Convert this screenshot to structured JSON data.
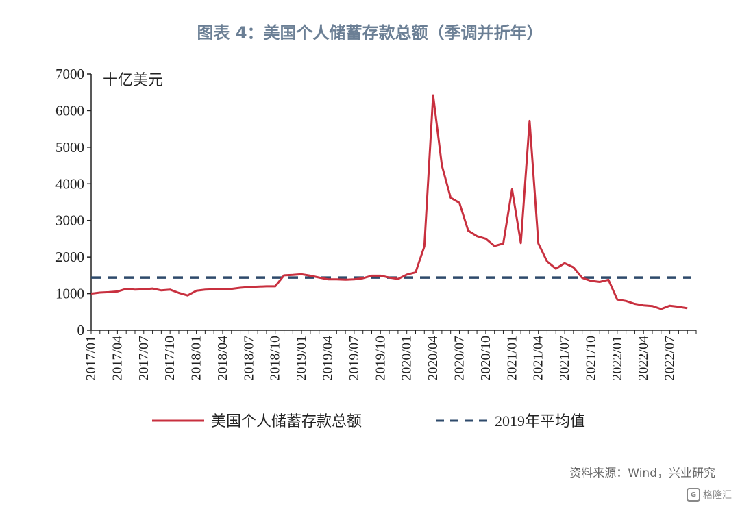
{
  "title": "图表 4：美国个人储蓄存款总额（季调并折年）",
  "source": "资料来源：Wind，兴业研究",
  "watermark": {
    "text": "格隆汇",
    "logo": "G"
  },
  "chart_data": {
    "type": "line",
    "unit_label": "十亿美元",
    "ylim": [
      0,
      7000
    ],
    "yticks": [
      0,
      1000,
      2000,
      3000,
      4000,
      5000,
      6000,
      7000
    ],
    "xticks": [
      "2017/01",
      "2017/04",
      "2017/07",
      "2017/10",
      "2018/01",
      "2018/04",
      "2018/07",
      "2018/10",
      "2019/01",
      "2019/04",
      "2019/07",
      "2019/10",
      "2020/01",
      "2020/04",
      "2020/07",
      "2020/10",
      "2021/01",
      "2021/04",
      "2021/07",
      "2021/10",
      "2022/01",
      "2022/04",
      "2022/07"
    ],
    "x": [
      "2017/01",
      "2017/02",
      "2017/03",
      "2017/04",
      "2017/05",
      "2017/06",
      "2017/07",
      "2017/08",
      "2017/09",
      "2017/10",
      "2017/11",
      "2017/12",
      "2018/01",
      "2018/02",
      "2018/03",
      "2018/04",
      "2018/05",
      "2018/06",
      "2018/07",
      "2018/08",
      "2018/09",
      "2018/10",
      "2018/11",
      "2018/12",
      "2019/01",
      "2019/02",
      "2019/03",
      "2019/04",
      "2019/05",
      "2019/06",
      "2019/07",
      "2019/08",
      "2019/09",
      "2019/10",
      "2019/11",
      "2019/12",
      "2020/01",
      "2020/02",
      "2020/03",
      "2020/04",
      "2020/05",
      "2020/06",
      "2020/07",
      "2020/08",
      "2020/09",
      "2020/10",
      "2020/11",
      "2020/12",
      "2021/01",
      "2021/02",
      "2021/03",
      "2021/04",
      "2021/05",
      "2021/06",
      "2021/07",
      "2021/08",
      "2021/09",
      "2021/10",
      "2021/11",
      "2021/12",
      "2022/01",
      "2022/02",
      "2022/03",
      "2022/04",
      "2022/05",
      "2022/06",
      "2022/07",
      "2022/08",
      "2022/09"
    ],
    "series": [
      {
        "name": "美国个人储蓄存款总额",
        "color": "#c8303f",
        "style": "solid",
        "values": [
          1000,
          1030,
          1040,
          1060,
          1130,
          1110,
          1120,
          1140,
          1090,
          1110,
          1020,
          950,
          1080,
          1110,
          1120,
          1120,
          1130,
          1160,
          1180,
          1190,
          1200,
          1200,
          1500,
          1510,
          1530,
          1490,
          1440,
          1390,
          1390,
          1380,
          1390,
          1420,
          1490,
          1490,
          1440,
          1400,
          1520,
          1580,
          2290,
          6420,
          4500,
          3620,
          3480,
          2720,
          2570,
          2500,
          2300,
          2370,
          3850,
          2380,
          5720,
          2370,
          1880,
          1680,
          1830,
          1720,
          1430,
          1350,
          1320,
          1380,
          840,
          800,
          720,
          680,
          660,
          580,
          670,
          640,
          600
        ]
      },
      {
        "name": "2019年平均值",
        "color": "#2e4a6b",
        "style": "dashed",
        "constant": 1440
      }
    ],
    "legend_position": "bottom",
    "grid": false
  }
}
